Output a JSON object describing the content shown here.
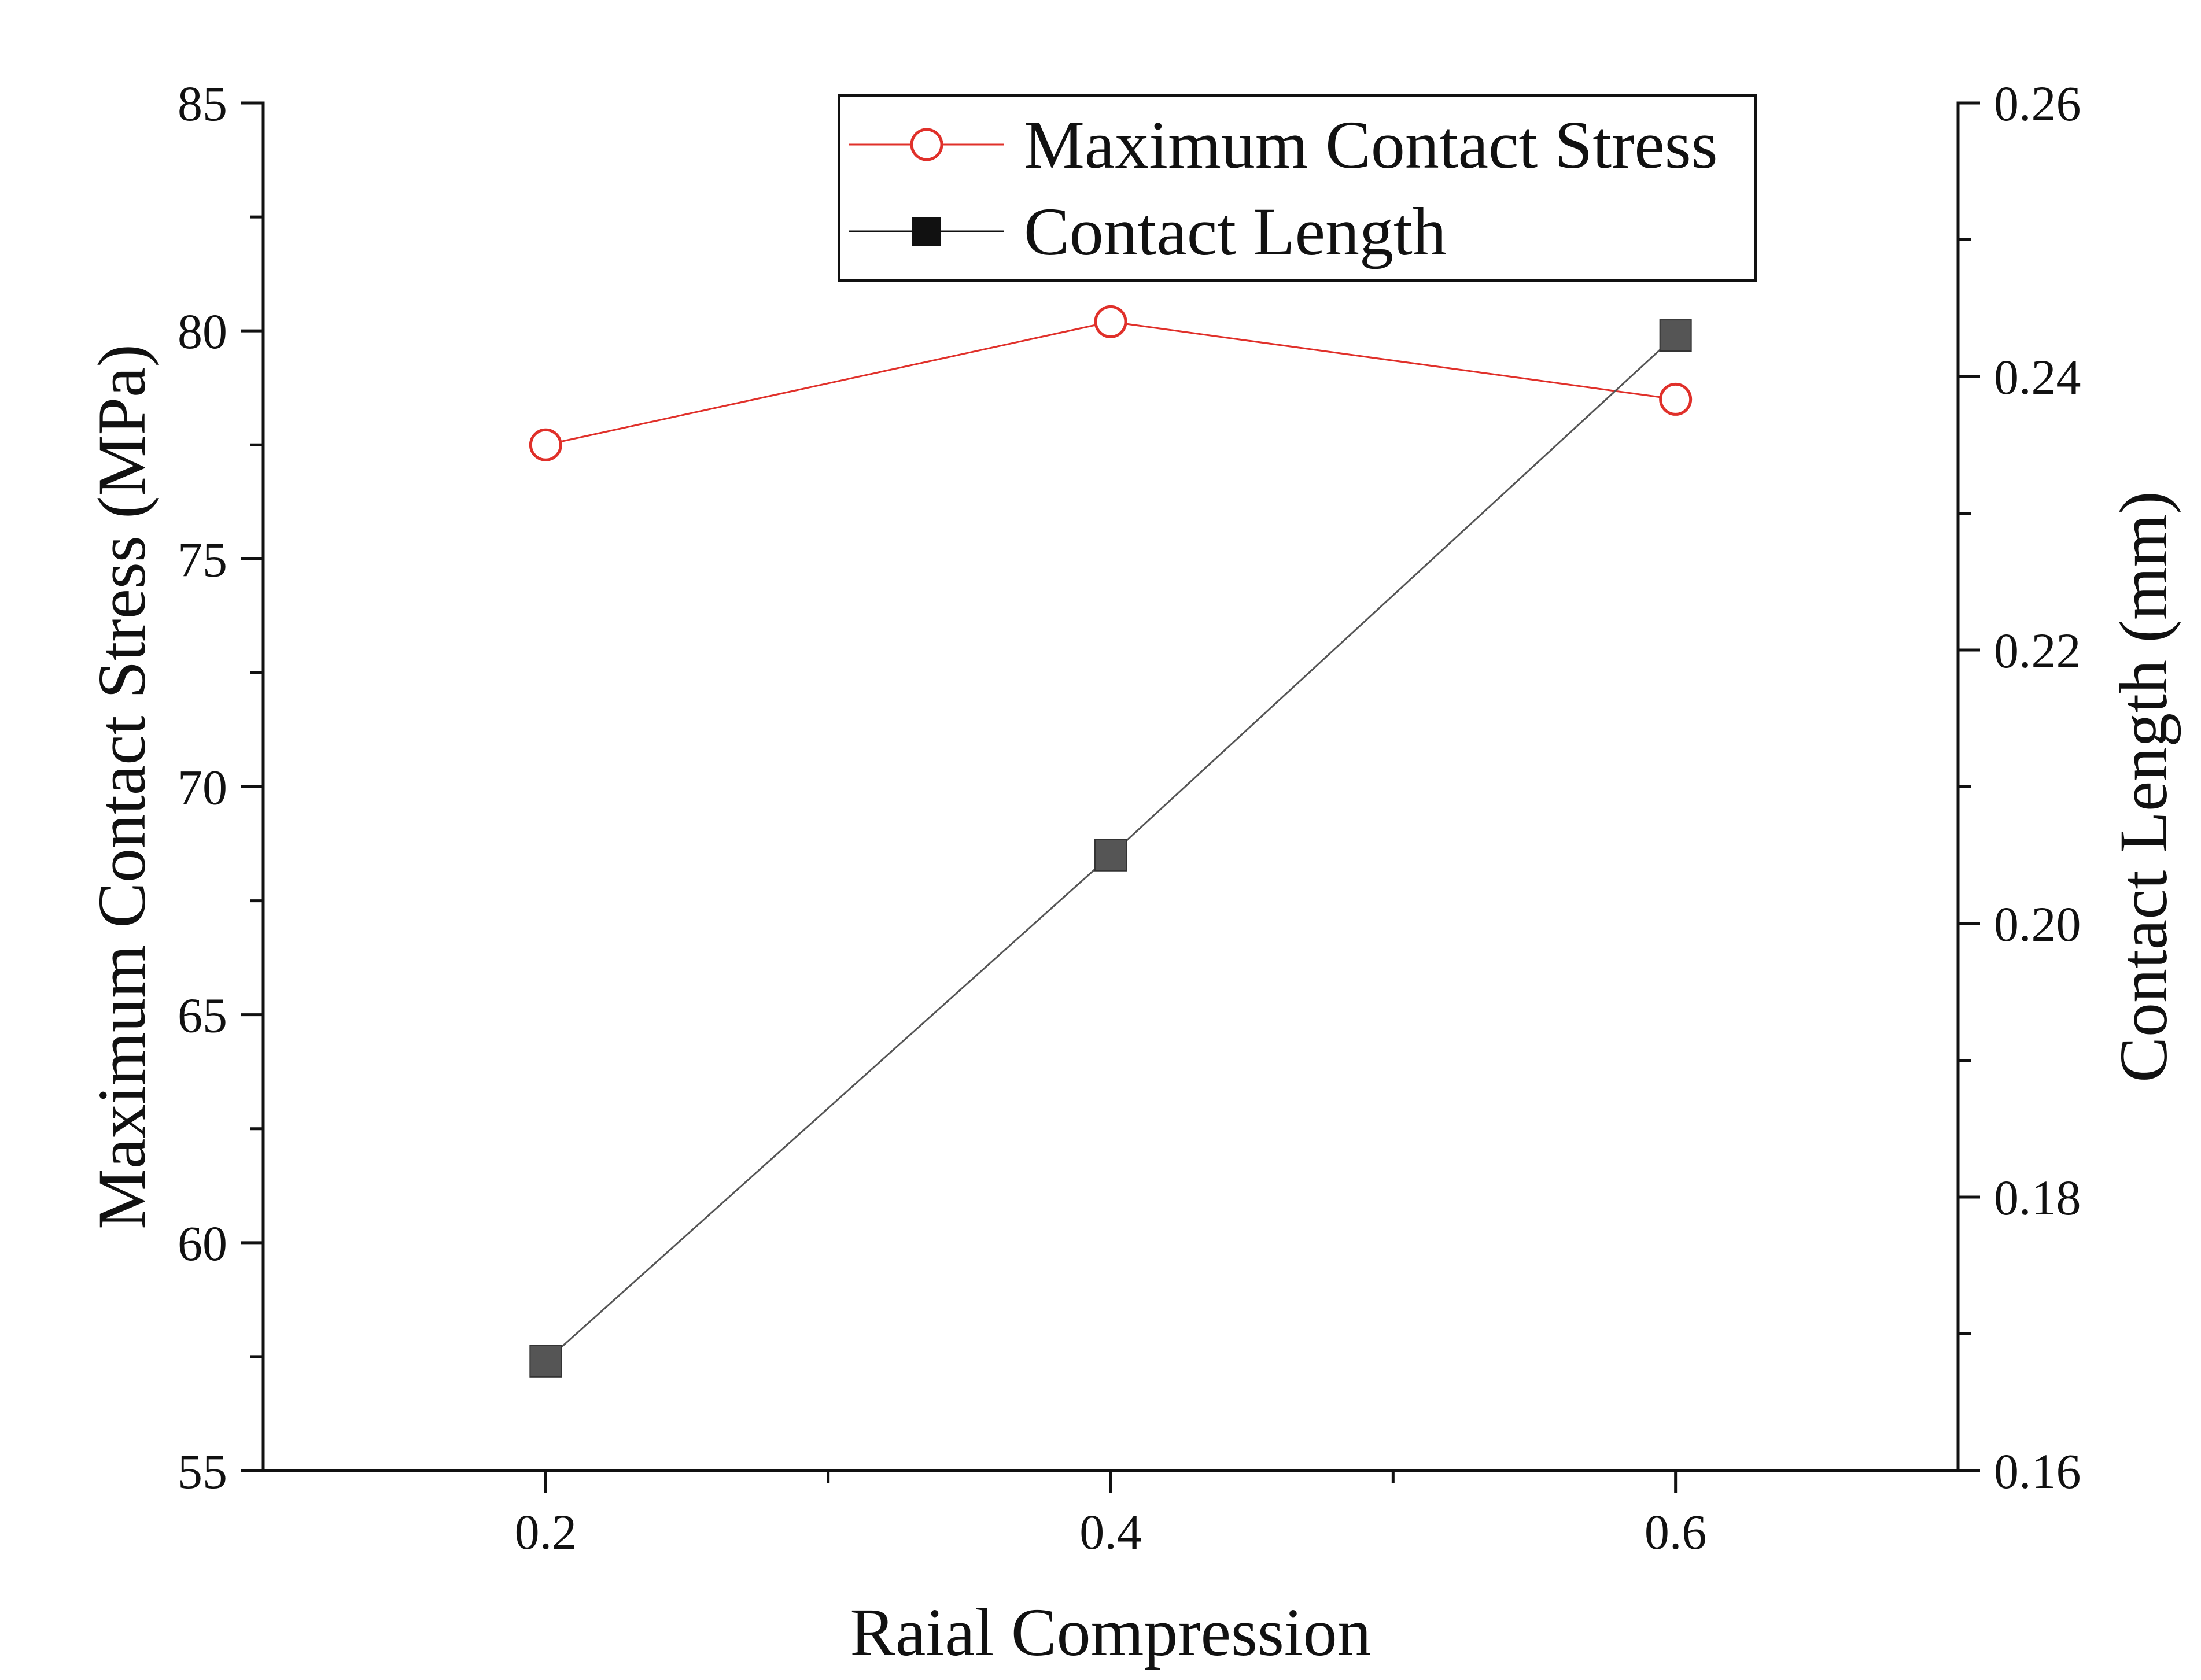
{
  "chart_data": {
    "type": "line",
    "title": "",
    "xlabel": "Raial Compression",
    "ylabel_left": "Maximum Contact Stress (MPa)",
    "ylabel_right": "Contact Length (mm)",
    "x": [
      0.2,
      0.4,
      0.6
    ],
    "xlim": [
      0.1,
      0.7
    ],
    "x_ticks": [
      0.2,
      0.4,
      0.6
    ],
    "x_tick_labels": [
      "0.2",
      "0.4",
      "0.6"
    ],
    "ylim_left": [
      55,
      85
    ],
    "y_left_ticks": [
      55,
      60,
      65,
      70,
      75,
      80,
      85
    ],
    "y_left_tick_labels": [
      "55",
      "60",
      "65",
      "70",
      "75",
      "80",
      "85"
    ],
    "ylim_right": [
      0.16,
      0.26
    ],
    "y_right_ticks": [
      0.16,
      0.18,
      0.2,
      0.22,
      0.24,
      0.26
    ],
    "y_right_tick_labels": [
      "0.16",
      "0.18",
      "0.20",
      "0.22",
      "0.24",
      "0.26"
    ],
    "grid": false,
    "legend_position": "top-right",
    "series": [
      {
        "name": "Maximum Contact Stress",
        "axis": "left",
        "values": [
          77.5,
          80.2,
          78.5
        ],
        "color": "#e0302a",
        "marker": "open-circle"
      },
      {
        "name": "Contact Length",
        "axis": "right",
        "values": [
          0.168,
          0.205,
          0.243
        ],
        "color": "#555555",
        "marker": "filled-square"
      }
    ]
  }
}
